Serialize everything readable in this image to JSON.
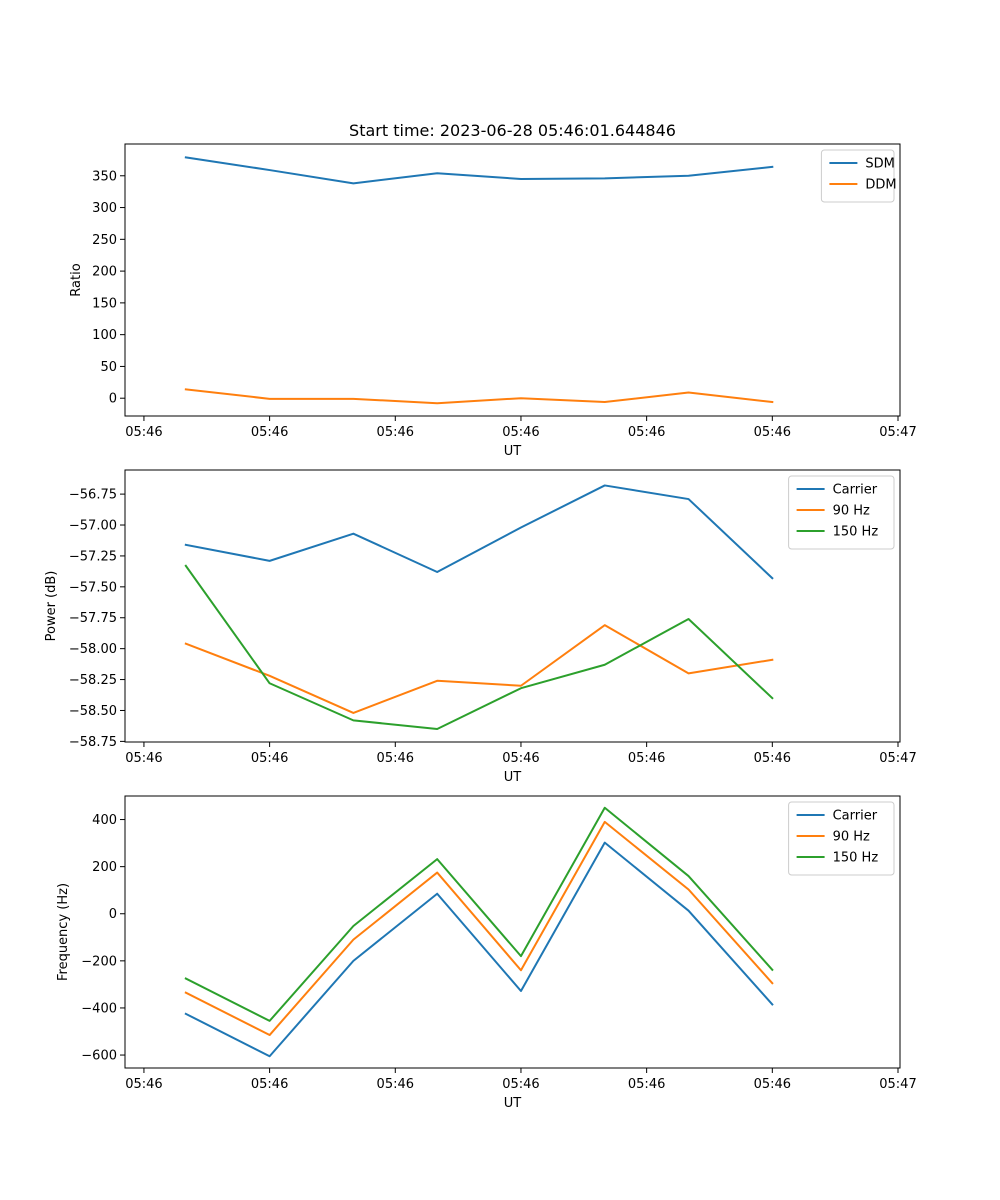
{
  "chart_data": [
    {
      "type": "line",
      "title": "Start time: 2023-06-28 05:46:01.644846",
      "xlabel": "UT",
      "ylabel": "Ratio",
      "x": [
        1,
        2,
        3,
        4,
        5,
        6,
        7,
        8
      ],
      "xlim": [
        0.274,
        9.524
      ],
      "xticks": [
        0.5,
        2.0,
        3.5,
        5.0,
        6.5,
        8.0,
        9.5
      ],
      "xticklabels": [
        "05:46",
        "05:46",
        "05:46",
        "05:46",
        "05:46",
        "05:46",
        "05:47"
      ],
      "ylim": [
        -28,
        400
      ],
      "yticks": [
        0,
        50,
        100,
        150,
        200,
        250,
        300,
        350
      ],
      "yticklabels": [
        "0",
        "50",
        "100",
        "150",
        "200",
        "250",
        "300",
        "350"
      ],
      "legend": "top-right",
      "grid": false,
      "series": [
        {
          "name": "SDM",
          "color": "#1f77b4",
          "values": [
            379,
            359,
            338,
            354,
            345,
            346,
            350,
            364
          ]
        },
        {
          "name": "DDM",
          "color": "#ff7f0e",
          "values": [
            14,
            -1,
            -1,
            -8,
            0,
            -6,
            9,
            -6
          ]
        }
      ]
    },
    {
      "type": "line",
      "title": "",
      "xlabel": "UT",
      "ylabel": "Power (dB)",
      "x": [
        1,
        2,
        3,
        4,
        5,
        6,
        7,
        8
      ],
      "xlim": [
        0.274,
        9.524
      ],
      "xticks": [
        0.5,
        2.0,
        3.5,
        5.0,
        6.5,
        8.0,
        9.5
      ],
      "xticklabels": [
        "05:46",
        "05:46",
        "05:46",
        "05:46",
        "05:46",
        "05:46",
        "05:47"
      ],
      "ylim": [
        -58.755,
        -56.555
      ],
      "yticks": [
        -56.75,
        -57.0,
        -57.25,
        -57.5,
        -57.75,
        -58.0,
        -58.25,
        -58.5,
        -58.75
      ],
      "yticklabels": [
        "−56.75",
        "−57.00",
        "−57.25",
        "−57.50",
        "−57.75",
        "−58.00",
        "−58.25",
        "−58.50",
        "−58.75"
      ],
      "legend": "top-right",
      "grid": false,
      "series": [
        {
          "name": "Carrier",
          "color": "#1f77b4",
          "values": [
            -57.16,
            -57.29,
            -57.07,
            -57.38,
            -57.02,
            -56.68,
            -56.79,
            -57.43
          ]
        },
        {
          "name": "90 Hz",
          "color": "#ff7f0e",
          "values": [
            -57.96,
            -58.22,
            -58.52,
            -58.26,
            -58.3,
            -57.81,
            -58.2,
            -58.09
          ]
        },
        {
          "name": "150 Hz",
          "color": "#2ca02c",
          "values": [
            -57.33,
            -58.28,
            -58.58,
            -58.65,
            -58.32,
            -58.13,
            -57.76,
            -58.4
          ]
        }
      ]
    },
    {
      "type": "line",
      "title": "",
      "xlabel": "UT",
      "ylabel": "Frequency (Hz)",
      "x": [
        1,
        2,
        3,
        4,
        5,
        6,
        7,
        8
      ],
      "xlim": [
        0.274,
        9.524
      ],
      "xticks": [
        0.5,
        2.0,
        3.5,
        5.0,
        6.5,
        8.0,
        9.5
      ],
      "xticklabels": [
        "05:46",
        "05:46",
        "05:46",
        "05:46",
        "05:46",
        "05:46",
        "05:47"
      ],
      "ylim": [
        -655,
        500
      ],
      "yticks": [
        400,
        200,
        0,
        -200,
        -400,
        -600
      ],
      "yticklabels": [
        "400",
        "200",
        "0",
        "−200",
        "−400",
        "−600"
      ],
      "legend": "top-right",
      "grid": false,
      "series": [
        {
          "name": "Carrier",
          "color": "#1f77b4",
          "values": [
            -425,
            -605,
            -200,
            85,
            -328,
            302,
            13,
            -385
          ]
        },
        {
          "name": "90 Hz",
          "color": "#ff7f0e",
          "values": [
            -335,
            -515,
            -110,
            175,
            -240,
            390,
            103,
            -295
          ]
        },
        {
          "name": "150 Hz",
          "color": "#2ca02c",
          "values": [
            -275,
            -455,
            -52,
            232,
            -180,
            450,
            160,
            -238
          ]
        }
      ]
    }
  ]
}
